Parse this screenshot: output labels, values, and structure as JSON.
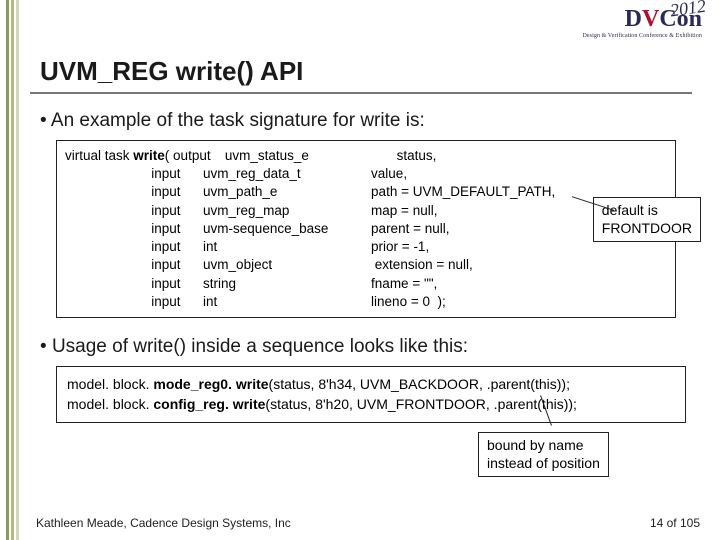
{
  "logo": {
    "prefix": "D",
    "mid": "V",
    "suffix": "Con",
    "year": "2012",
    "sub": "Design & Verification Conference & Exhibition"
  },
  "title": "UVM_REG write() API",
  "bullet1": "An example of the task signature for write is:",
  "code1": {
    "lines": [
      {
        "lead": "virtual task ",
        "bold": "write",
        "after": "( ",
        "dir": "output",
        "type": "uvm_status_e",
        "pad": "          ",
        "rest": " status,"
      },
      {
        "lead": "                       ",
        "bold": "",
        "after": "",
        "dir": "input",
        "type": "uvm_reg_data_t",
        "pad": "       ",
        "rest": "value,"
      },
      {
        "lead": "                       ",
        "bold": "",
        "after": "",
        "dir": "input",
        "type": "uvm_path_e",
        "pad": "             ",
        "rest": "path = UVM_DEFAULT_PATH,"
      },
      {
        "lead": "                       ",
        "bold": "",
        "after": "",
        "dir": "input",
        "type": "uvm_reg_map",
        "pad": "          ",
        "rest": "map = null,"
      },
      {
        "lead": "                       ",
        "bold": "",
        "after": "",
        "dir": "input",
        "type": "uvm-sequence_base",
        "pad": " ",
        "rest": "parent = null,"
      },
      {
        "lead": "                       ",
        "bold": "",
        "after": "",
        "dir": "input",
        "type": "int",
        "pad": "                           ",
        "rest": "prior = -1,"
      },
      {
        "lead": "                       ",
        "bold": "",
        "after": "",
        "dir": "input",
        "type": "uvm_object",
        "pad": "             ",
        "rest": " extension = null,"
      },
      {
        "lead": "                       ",
        "bold": "",
        "after": "",
        "dir": "input",
        "type": "string",
        "pad": "                       ",
        "rest": "fname = \"\","
      },
      {
        "lead": "                       ",
        "bold": "",
        "after": "",
        "dir": "input",
        "type": "int",
        "pad": "                            ",
        "rest": "lineno = 0  );"
      }
    ]
  },
  "callout1": {
    "l1": "default is",
    "l2": "FRONTDOOR"
  },
  "bullet2": "Usage of write() inside a sequence looks like this:",
  "code2": {
    "l1_a": "model. block. ",
    "l1_b": "mode_reg0. write",
    "l1_c": "(status, 8'h34, UVM_BACKDOOR, .parent(this));",
    "l2_a": "model. block. ",
    "l2_b": "config_reg. write",
    "l2_c": "(status, 8'h20, UVM_FRONTDOOR, .parent(this));"
  },
  "callout2": {
    "l1": "bound by name",
    "l2": "instead of position"
  },
  "footer": {
    "left": "Kathleen Meade, Cadence Design Systems, Inc",
    "right": "14 of 105"
  },
  "colors": {
    "bar1": "#8a9a5b",
    "bar2": "#b0bc88",
    "bar3": "#d2d8b8",
    "text": "#1a1a1a",
    "border": "#222222"
  }
}
